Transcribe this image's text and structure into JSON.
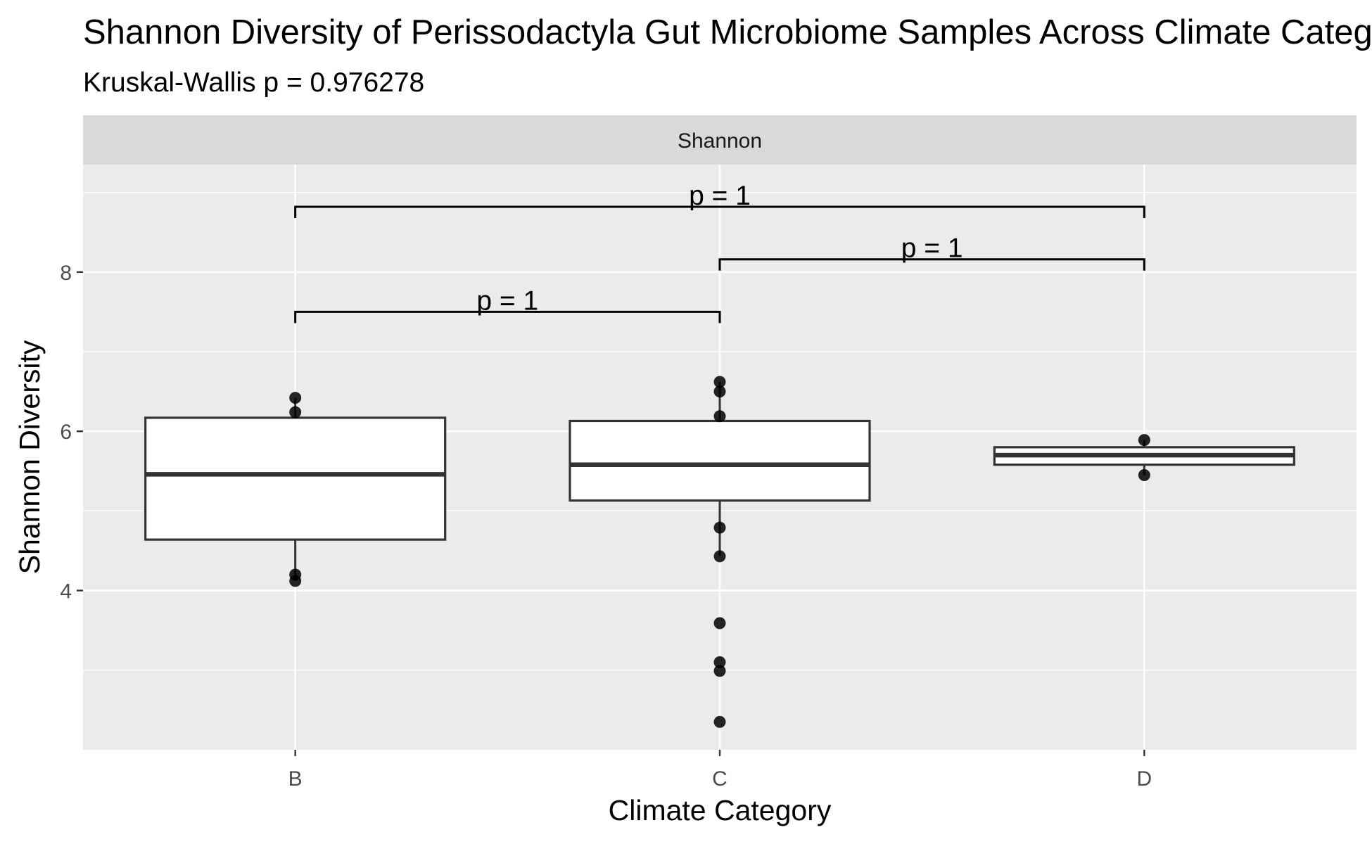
{
  "chart_data": {
    "type": "box",
    "title": "Shannon Diversity of Perissodactyla Gut Microbiome Samples Across Climate Categories",
    "subtitle": "Kruskal-Wallis p = 0.976278",
    "facet_label": "Shannon",
    "xlabel": "Climate Category",
    "ylabel": "Shannon Diversity",
    "ylim": [
      2.0,
      9.35
    ],
    "y_ticks": [
      4,
      6,
      8
    ],
    "grid": true,
    "categories": [
      "B",
      "C",
      "D"
    ],
    "boxes": [
      {
        "category": "B",
        "q1": 4.64,
        "median": 5.46,
        "q3": 6.17,
        "whisker_low": 4.12,
        "whisker_high": 6.42
      },
      {
        "category": "C",
        "q1": 5.13,
        "median": 5.58,
        "q3": 6.13,
        "whisker_low": 4.43,
        "whisker_high": 6.62
      },
      {
        "category": "D",
        "q1": 5.58,
        "median": 5.7,
        "q3": 5.8,
        "whisker_low": 5.45,
        "whisker_high": 5.89
      }
    ],
    "points": [
      {
        "category": "B",
        "y": 6.42
      },
      {
        "category": "B",
        "y": 6.24
      },
      {
        "category": "B",
        "y": 4.2
      },
      {
        "category": "B",
        "y": 4.12
      },
      {
        "category": "C",
        "y": 6.62
      },
      {
        "category": "C",
        "y": 6.5
      },
      {
        "category": "C",
        "y": 6.19
      },
      {
        "category": "C",
        "y": 4.79
      },
      {
        "category": "C",
        "y": 4.43
      },
      {
        "category": "C",
        "y": 3.59
      },
      {
        "category": "C",
        "y": 3.1
      },
      {
        "category": "C",
        "y": 2.99
      },
      {
        "category": "C",
        "y": 2.35
      },
      {
        "category": "D",
        "y": 5.89
      },
      {
        "category": "D",
        "y": 5.45
      }
    ],
    "comparisons": [
      {
        "from": "B",
        "to": "C",
        "y": 7.5,
        "label": "p = 1"
      },
      {
        "from": "C",
        "to": "D",
        "y": 8.16,
        "label": "p = 1"
      },
      {
        "from": "B",
        "to": "D",
        "y": 8.82,
        "label": "p = 1"
      }
    ]
  }
}
